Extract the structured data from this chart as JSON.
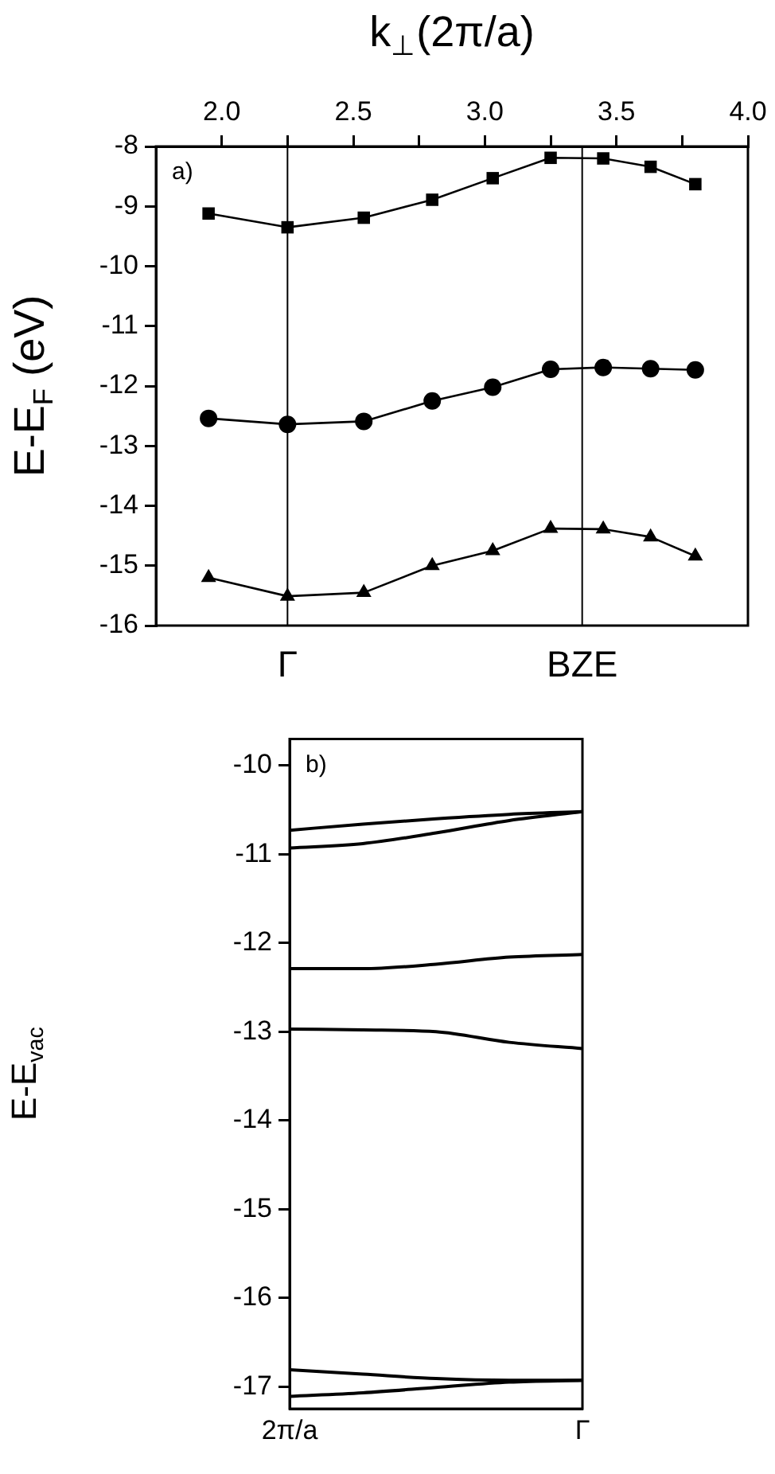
{
  "chart_data": [
    {
      "type": "line",
      "xlabel": "k$_{⊥}$(2π/a)",
      "ylabel": "E-E$_{F}$ (eV)",
      "annotations": [
        "a)"
      ],
      "x": [
        1.95,
        2.25,
        2.54,
        2.8,
        3.03,
        3.25,
        3.45,
        3.63,
        3.8
      ],
      "series": [
        {
          "color": "#000000",
          "marker": "square",
          "values": [
            -9.12,
            -9.35,
            -9.19,
            -8.89,
            -8.53,
            -8.19,
            -8.2,
            -8.34,
            -8.63
          ]
        },
        {
          "color": "#000000",
          "marker": "circle",
          "values": [
            -12.54,
            -12.64,
            -12.59,
            -12.25,
            -12.02,
            -11.72,
            -11.69,
            -11.71,
            -11.73
          ]
        },
        {
          "color": "#000000",
          "marker": "triangle",
          "values": [
            -15.2,
            -15.51,
            -15.45,
            -15.0,
            -14.75,
            -14.38,
            -14.39,
            -14.52,
            -14.84
          ]
        }
      ],
      "xlim": [
        1.75,
        4.0
      ],
      "xticks": [
        {
          "value": 2,
          "label": "2.0"
        },
        {
          "value": 2.25,
          "label": null
        },
        {
          "value": 2.5,
          "label": "2.5"
        },
        {
          "value": 2.75,
          "label": null
        },
        {
          "value": 3,
          "label": "3.0"
        },
        {
          "value": 3.25,
          "label": null
        },
        {
          "value": 3.5,
          "label": "3.5"
        },
        {
          "value": 3.75,
          "label": null
        },
        {
          "value": 4,
          "label": "4.0"
        }
      ],
      "ylim": [
        -16,
        -8
      ],
      "yticks": [
        -16,
        -15,
        -14,
        -13,
        -12,
        -11,
        -10,
        -9,
        -8
      ],
      "ref_lines": [
        {
          "axis": "x",
          "value": 2.25,
          "label": "Γ"
        },
        {
          "axis": "x",
          "value": 3.37,
          "label": "BZE"
        }
      ],
      "grid": false
    },
    {
      "type": "line",
      "ylabel": "E-E$_{vac}$",
      "annotations": [
        "b)"
      ],
      "categories": [
        "2π/a",
        null,
        null,
        null,
        "Γ"
      ],
      "series": [
        {
          "color": "#000000",
          "values": [
            -10.73,
            -10.66,
            -10.6,
            -10.55,
            -10.52
          ]
        },
        {
          "color": "#000000",
          "values": [
            -10.93,
            -10.88,
            -10.76,
            -10.62,
            -10.52
          ]
        },
        {
          "color": "#000000",
          "values": [
            -12.29,
            -12.29,
            -12.24,
            -12.16,
            -12.13
          ]
        },
        {
          "color": "#000000",
          "values": [
            -12.97,
            -12.98,
            -13.0,
            -13.12,
            -13.19
          ]
        },
        {
          "color": "#000000",
          "values": [
            -16.81,
            -16.86,
            -16.91,
            -16.93,
            -16.93
          ]
        },
        {
          "color": "#000000",
          "values": [
            -17.11,
            -17.07,
            -17.01,
            -16.95,
            -16.93
          ]
        }
      ],
      "ylim": [
        -17.25,
        -9.7
      ],
      "yticks": [
        -17,
        -16,
        -15,
        -14,
        -13,
        -12,
        -11,
        -10
      ],
      "grid": false
    }
  ]
}
